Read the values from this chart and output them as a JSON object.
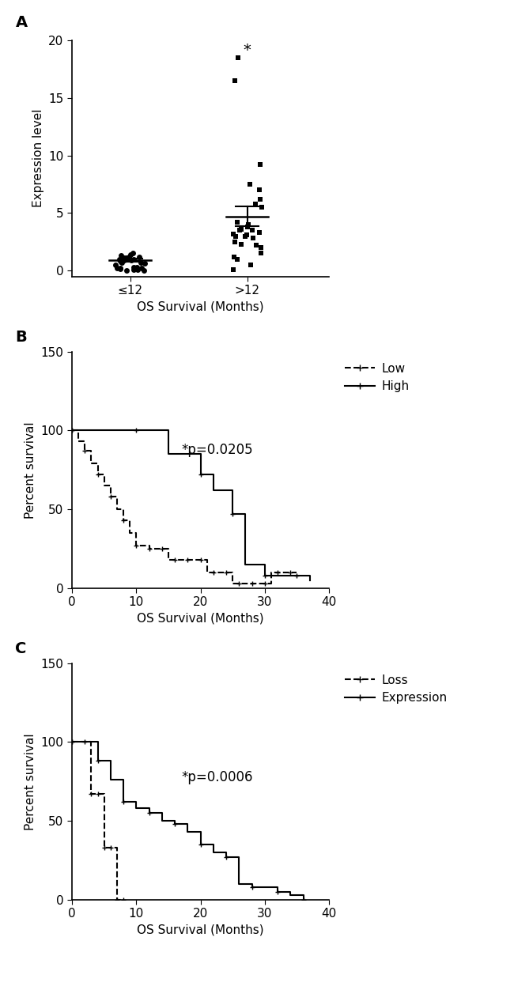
{
  "panel_A": {
    "label": "A",
    "group1_label": "≤12",
    "group2_label": ">12",
    "xlabel": "OS Survival (Months)",
    "ylabel": "Expression level",
    "ylim": [
      -0.5,
      20
    ],
    "yticks": [
      0,
      5,
      10,
      15,
      20
    ],
    "group1_data": [
      0.0,
      0.05,
      0.1,
      0.1,
      0.15,
      0.2,
      0.2,
      0.25,
      0.3,
      0.3,
      0.5,
      0.6,
      0.7,
      0.7,
      0.8,
      0.8,
      0.9,
      0.9,
      1.0,
      1.0,
      1.0,
      1.0,
      1.1,
      1.1,
      1.2,
      1.2,
      1.3,
      1.4,
      1.5
    ],
    "group2_data": [
      0.1,
      0.5,
      1.0,
      1.2,
      1.5,
      2.0,
      2.2,
      2.3,
      2.5,
      2.8,
      3.0,
      3.0,
      3.1,
      3.2,
      3.3,
      3.5,
      3.5,
      3.6,
      3.8,
      4.0,
      4.2,
      5.5,
      5.8,
      6.2,
      7.0,
      7.5,
      9.2,
      16.5,
      18.5
    ],
    "group1_mean": 0.9,
    "group2_mean": 4.7,
    "group1_sem": 0.15,
    "group2_sem": 0.85,
    "significance": "*"
  },
  "panel_B": {
    "label": "B",
    "xlabel": "OS Survival (Months)",
    "ylabel": "Percent survival",
    "ylim": [
      0,
      150
    ],
    "xlim": [
      0,
      40
    ],
    "yticks": [
      0,
      50,
      100,
      150
    ],
    "xticks": [
      0,
      10,
      20,
      30,
      40
    ],
    "pvalue_text": "*p=0.0205",
    "pvalue_x": 17,
    "pvalue_y": 85,
    "low_x": [
      0,
      1,
      2,
      3,
      4,
      5,
      6,
      7,
      8,
      9,
      10,
      11,
      12,
      13,
      14,
      15,
      16,
      17,
      18,
      19,
      20,
      21,
      22,
      23,
      24,
      25,
      26,
      27,
      28,
      29,
      30,
      31,
      32,
      33,
      34,
      35
    ],
    "low_y": [
      100,
      93,
      87,
      79,
      72,
      65,
      58,
      50,
      43,
      35,
      27,
      27,
      25,
      25,
      25,
      18,
      18,
      18,
      18,
      18,
      18,
      10,
      10,
      10,
      10,
      3,
      3,
      3,
      3,
      3,
      3,
      10,
      10,
      10,
      10,
      10
    ],
    "high_x": [
      0,
      5,
      10,
      15,
      20,
      22,
      25,
      27,
      30,
      33,
      35,
      37
    ],
    "high_y": [
      100,
      100,
      100,
      85,
      72,
      62,
      47,
      15,
      8,
      8,
      8,
      5
    ],
    "legend1": "Low",
    "legend2": "High"
  },
  "panel_C": {
    "label": "C",
    "xlabel": "OS Survival (Months)",
    "ylabel": "Percent survival",
    "ylim": [
      0,
      150
    ],
    "xlim": [
      0,
      40
    ],
    "yticks": [
      0,
      50,
      100,
      150
    ],
    "xticks": [
      0,
      10,
      20,
      30,
      40
    ],
    "pvalue_text": "*p=0.0006",
    "pvalue_x": 17,
    "pvalue_y": 75,
    "loss_x": [
      0,
      2,
      3,
      4,
      5,
      6,
      7,
      8
    ],
    "loss_y": [
      100,
      100,
      67,
      67,
      33,
      33,
      0,
      0
    ],
    "expression_x": [
      0,
      2,
      4,
      6,
      8,
      10,
      12,
      14,
      16,
      18,
      20,
      22,
      24,
      26,
      28,
      30,
      32,
      34,
      36
    ],
    "expression_y": [
      100,
      100,
      88,
      76,
      62,
      58,
      55,
      50,
      48,
      43,
      35,
      30,
      27,
      10,
      8,
      8,
      5,
      3,
      0
    ],
    "legend1": "Loss",
    "legend2": "Expression"
  },
  "bg_color": "#ffffff",
  "text_color": "#000000"
}
